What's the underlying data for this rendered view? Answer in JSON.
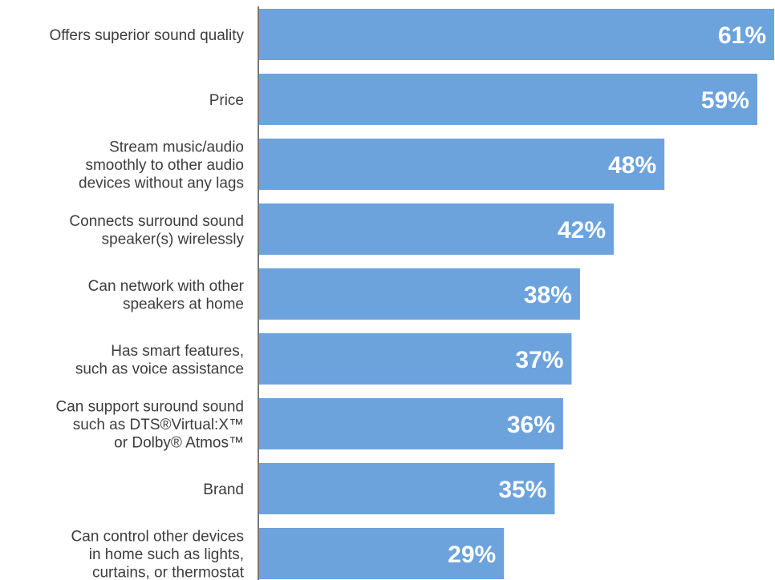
{
  "chart_data": {
    "type": "bar",
    "orientation": "horizontal",
    "categories": [
      "Offers superior sound quality",
      "Price",
      "Stream music/audio smoothly to other audio devices without any lags",
      "Connects surround sound speaker(s) wirelessly",
      "Can network with other speakers at home",
      "Has smart features, such as voice assistance",
      "Can support suround sound such as DTS®Virtual:X™ or Dolby® Atmos™",
      "Brand",
      "Can control other devices in home such as lights, curtains, or thermostat"
    ],
    "category_lines": [
      [
        "Offers superior sound quality"
      ],
      [
        "Price"
      ],
      [
        "Stream music/audio",
        "smoothly to other audio",
        "devices without any lags"
      ],
      [
        "Connects surround sound",
        "speaker(s) wirelessly"
      ],
      [
        "Can network with other",
        "speakers at home"
      ],
      [
        "Has smart features,",
        "such as voice assistance"
      ],
      [
        "Can support suround sound",
        "such as DTS®Virtual:X™",
        "or Dolby® Atmos™"
      ],
      [
        "Brand"
      ],
      [
        "Can control other devices",
        "in home such as lights,",
        "curtains, or thermostat"
      ]
    ],
    "values": [
      61,
      59,
      48,
      42,
      38,
      37,
      36,
      35,
      29
    ],
    "value_labels": [
      "61%",
      "59%",
      "48%",
      "42%",
      "38%",
      "37%",
      "36%",
      "35%",
      "29%"
    ],
    "unit": "%",
    "title": "",
    "xlabel": "",
    "ylabel": "",
    "xlim": [
      0,
      61
    ],
    "grid": false,
    "legend": "none",
    "colors": {
      "bar": "#6ca3dd",
      "axis": "#4a4a4a",
      "label": "#3d3d3d",
      "value": "#ffffff"
    }
  }
}
